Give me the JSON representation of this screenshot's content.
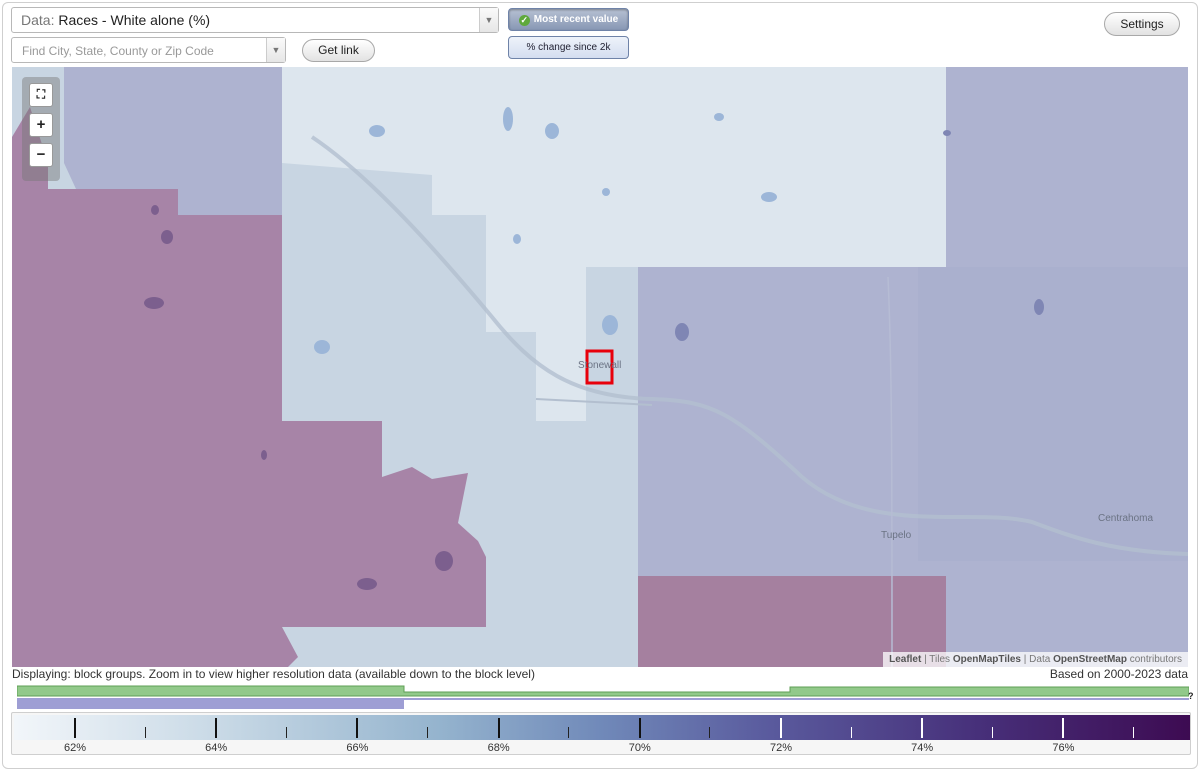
{
  "toolbar": {
    "data_prefix": "Data:",
    "data_value": "Races - White alone (%)",
    "search_placeholder": "Find City, State, County or Zip Code",
    "get_link_label": "Get link",
    "mode_active_label": "Most recent value",
    "mode_inactive_label": "% change since 2k",
    "settings_label": "Settings"
  },
  "map": {
    "places": [
      "Stonewall",
      "Tupelo",
      "Centrahoma"
    ],
    "zoom_controls": {
      "fullscreen": "fullscreen-icon",
      "zoom_in": "+",
      "zoom_out": "−"
    },
    "attribution": {
      "leaflet": "Leaflet",
      "sep1": " | Tiles ",
      "tiles": "OpenMapTiles",
      "sep2": " | Data ",
      "data": "OpenStreetMap",
      "suffix": " contributors"
    },
    "colors": {
      "lightest": "#dce6ee",
      "light_blue": "#c6d5e2",
      "periwinkle": "#aeb3d0",
      "mauve": "#a784a7",
      "water": "#9cb6d8",
      "selection": "#e8000b"
    }
  },
  "status": {
    "displaying": "Displaying: block groups. Zoom in to view higher resolution data (available down to the block level)",
    "based_on": "Based on 2000-2023 data",
    "help_mark": "?"
  },
  "legend": {
    "ticks": [
      {
        "label": "62%"
      },
      {
        "label": "64%"
      },
      {
        "label": "66%"
      },
      {
        "label": "68%"
      },
      {
        "label": "70%"
      },
      {
        "label": "72%"
      },
      {
        "label": "74%"
      },
      {
        "label": "76%"
      }
    ],
    "min_label": "",
    "max_label": ""
  }
}
